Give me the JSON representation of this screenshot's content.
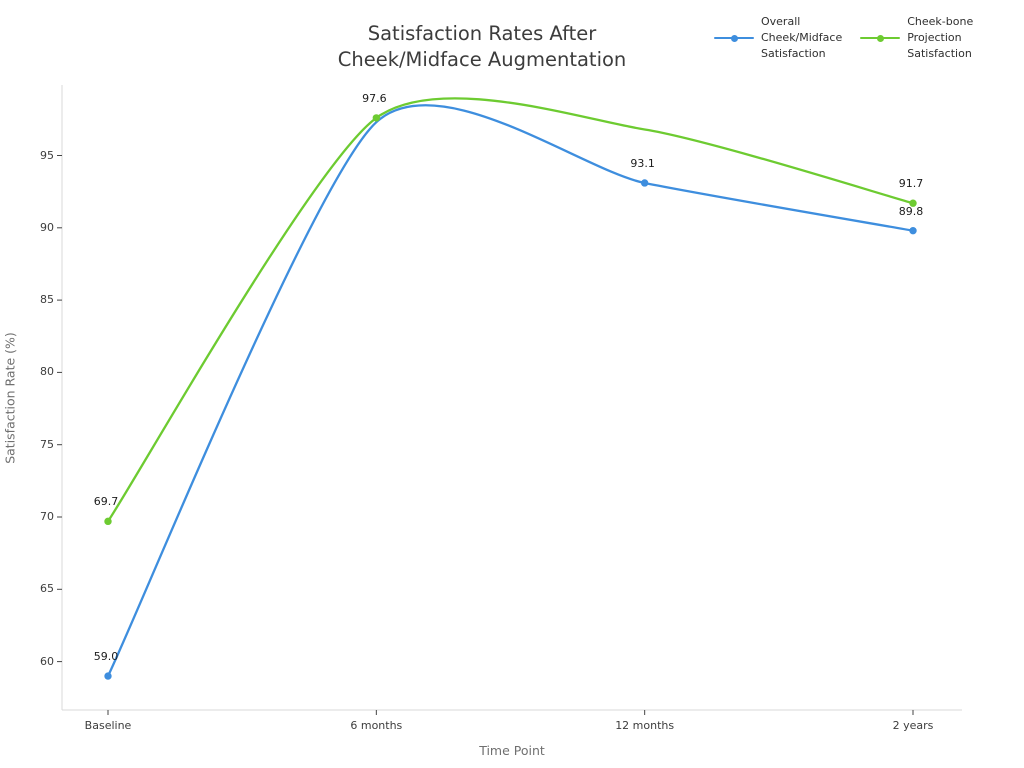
{
  "chart_data": {
    "type": "line",
    "line_shape": "spline",
    "title": "Satisfaction Rates After\nCheek/Midface Augmentation",
    "xlabel": "Time Point",
    "ylabel": "Satisfaction Rate (%)",
    "categories": [
      "Baseline",
      "6 months",
      "12 months",
      "2 years"
    ],
    "y_ticks": [
      60,
      65,
      70,
      75,
      80,
      85,
      90,
      95
    ],
    "ylim": [
      56.6,
      99.9
    ],
    "grid": false,
    "legend_position": "top-right",
    "background_color": "#ffffff",
    "axis_line_color": "#d9d9d9",
    "tick_mark_color": "#444444",
    "series": [
      {
        "name": "Overall Cheek/Midface Satisfaction",
        "legend_label": "Overall\nCheek/Midface\nSatisfaction",
        "color": "#3e8ede",
        "values": [
          59.0,
          97.3,
          93.1,
          89.8
        ],
        "point_labels": [
          "59.0",
          "",
          "93.1",
          "89.8"
        ],
        "show_marker": [
          true,
          false,
          true,
          true
        ]
      },
      {
        "name": "Cheek-bone Projection Satisfaction",
        "legend_label": "Cheek-bone\nProjection\nSatisfaction",
        "color": "#6dcb31",
        "values": [
          69.7,
          97.6,
          96.8,
          91.7
        ],
        "point_labels": [
          "69.7",
          "97.6",
          "",
          "91.7"
        ],
        "show_marker": [
          true,
          true,
          false,
          true
        ]
      }
    ]
  }
}
